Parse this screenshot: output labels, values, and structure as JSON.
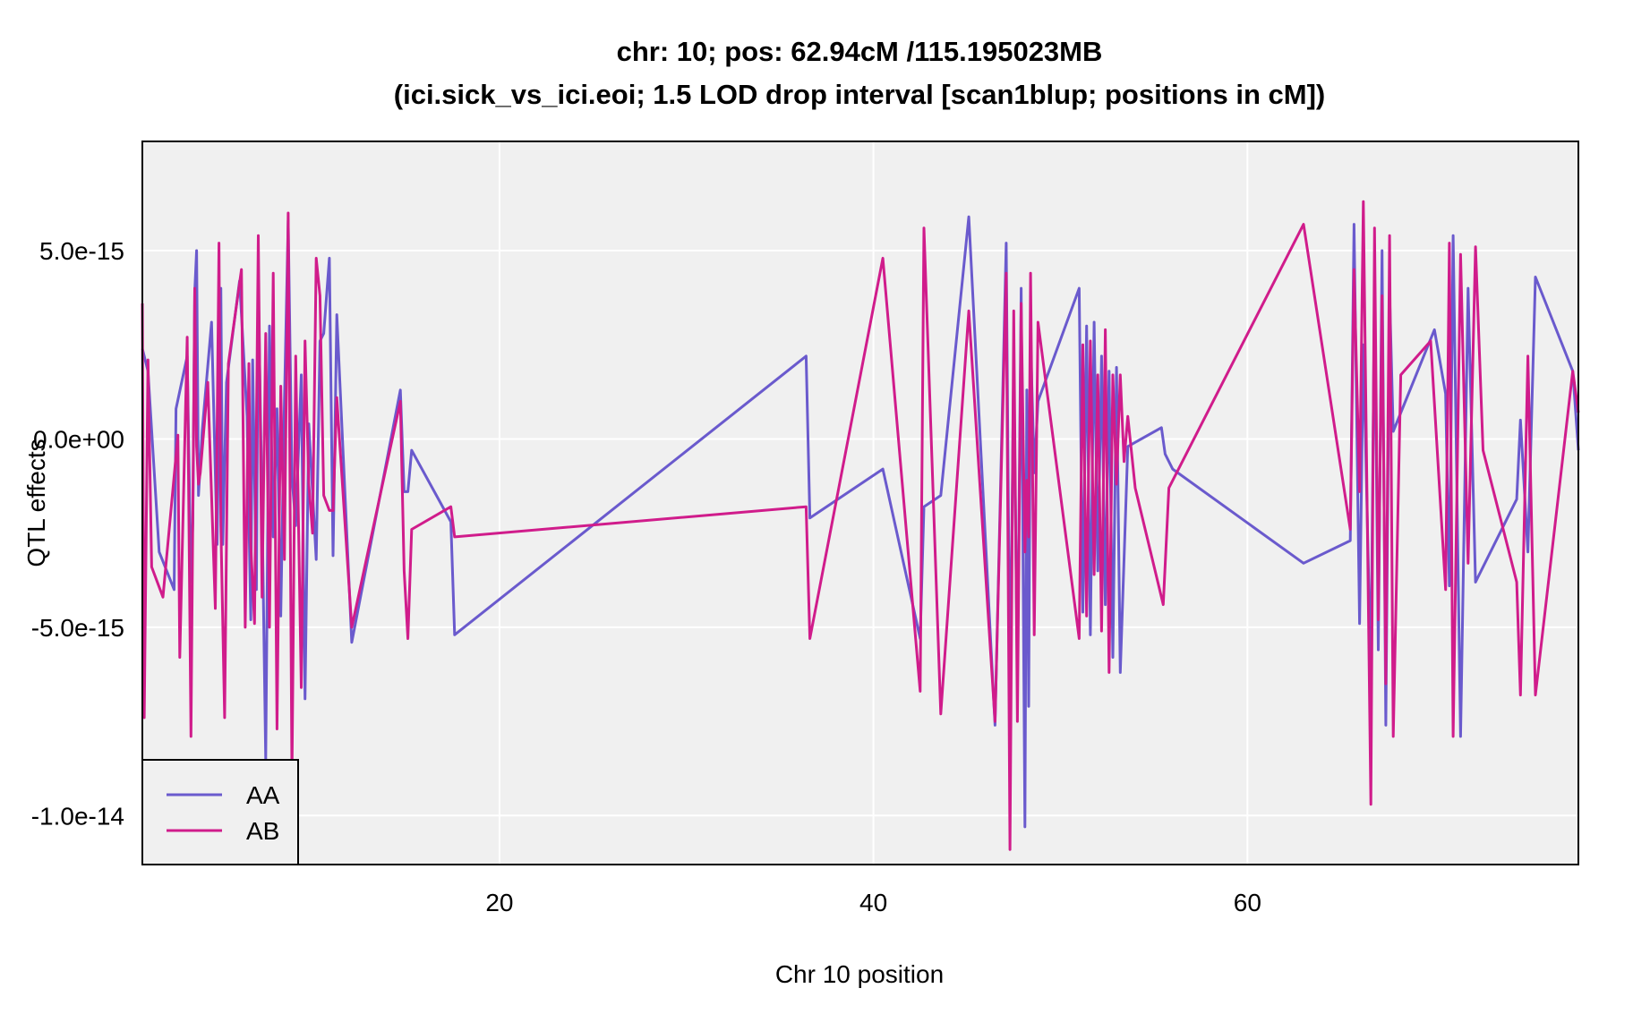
{
  "chart_data": {
    "type": "line",
    "title": "chr: 10; pos: 62.94cM /115.195023MB",
    "subtitle": "(ici.sick_vs_ici.eoi; 1.5 LOD drop interval [scan1blup; positions in cM])",
    "xlabel": "Chr 10 position",
    "ylabel": "QTL effects",
    "xlim": [
      0.9,
      77.7
    ],
    "ylim": [
      -1.13e-14,
      7.9e-15
    ],
    "x_ticks": [
      20,
      40,
      60
    ],
    "x_tick_labels": [
      "20",
      "40",
      "60"
    ],
    "y_ticks": [
      5e-15,
      0,
      -5e-15,
      -1e-14
    ],
    "y_tick_labels": [
      "5.0e-15",
      "0.0e+00",
      "-5.0e-15",
      "-1.0e-14"
    ],
    "grid": true,
    "legend_position": "bottom-left",
    "series": [
      {
        "name": "AA",
        "color": "#6a5acd",
        "x": [
          0.9,
          1.2,
          1.8,
          2.6,
          2.7,
          3.3,
          3.5,
          3.6,
          3.7,
          3.8,
          3.9,
          4.1,
          4.6,
          4.9,
          5.1,
          5.2,
          5.4,
          6.1,
          6.5,
          6.7,
          6.8,
          7.0,
          7.1,
          7.3,
          7.5,
          7.7,
          7.9,
          8.1,
          8.3,
          8.5,
          8.7,
          8.9,
          9.1,
          9.4,
          9.6,
          9.8,
          10.2,
          10.4,
          10.6,
          10.9,
          11.1,
          11.3,
          12.1,
          14.7,
          14.9,
          15.1,
          15.3,
          17.4,
          17.6,
          36.4,
          36.6,
          40.5,
          42.5,
          42.7,
          43.6,
          45.1,
          46.5,
          47.1,
          47.3,
          47.5,
          47.7,
          47.9,
          48.1,
          48.2,
          48.3,
          48.4,
          48.6,
          48.8,
          51.0,
          51.2,
          51.4,
          51.6,
          51.8,
          52.0,
          52.2,
          52.4,
          52.6,
          52.8,
          53.0,
          53.2,
          53.6,
          55.4,
          55.6,
          56.0,
          63.0,
          65.5,
          65.7,
          66.0,
          66.2,
          66.6,
          66.8,
          67.0,
          67.2,
          67.4,
          67.6,
          67.8,
          70.0,
          70.6,
          70.8,
          71.0,
          71.4,
          71.8,
          72.2,
          74.4,
          74.6,
          75.0,
          75.4,
          77.4,
          77.7
        ],
        "y": [
          2.4e-15,
          1.8e-15,
          -3e-15,
          -4e-15,
          8e-16,
          2.2e-15,
          -3.8e-15,
          -2.2e-15,
          3.9e-15,
          5e-15,
          -1.5e-15,
          2e-16,
          3.1e-15,
          -2.8e-15,
          4e-15,
          -2.8e-15,
          1.5e-15,
          4.2e-15,
          6e-16,
          -4.8e-15,
          2.1e-15,
          -4e-15,
          4.1e-15,
          -1.8e-15,
          -8.5e-15,
          3e-15,
          -2.6e-15,
          8e-16,
          -4.7e-15,
          1e-15,
          5.8e-15,
          -1e-15,
          -2.3e-15,
          1.7e-15,
          -6.9e-15,
          4e-16,
          -3.2e-15,
          2.6e-15,
          2.8e-15,
          4.8e-15,
          -3.1e-15,
          3.3e-15,
          -5.4e-15,
          1.3e-15,
          -1.4e-15,
          -1.4e-15,
          -3e-16,
          -2.2e-15,
          -5.2e-15,
          2.2e-15,
          -2.1e-15,
          -8e-16,
          -5.3e-15,
          -1.8e-15,
          -1.5e-15,
          5.9e-15,
          -7.6e-15,
          5.2e-15,
          -6.9e-15,
          2e-15,
          -6.4e-15,
          4e-15,
          -1.03e-14,
          1.3e-15,
          -7.1e-15,
          2.7e-15,
          -9e-16,
          1e-15,
          4e-15,
          -4.6e-15,
          3e-15,
          -5.2e-15,
          3.1e-15,
          -3.5e-15,
          2.2e-15,
          -4.4e-15,
          1.8e-15,
          -5.8e-15,
          1.9e-15,
          -6.2e-15,
          -2e-16,
          3e-16,
          -4e-16,
          -8e-16,
          -3.3e-15,
          -2.7e-15,
          5.7e-15,
          -4.9e-15,
          2.5e-15,
          -6.3e-15,
          4.1e-15,
          -5.6e-15,
          5e-15,
          -7.6e-15,
          3.9e-15,
          2e-16,
          2.9e-15,
          1.2e-15,
          -3.9e-15,
          5.4e-15,
          -7.9e-15,
          4e-15,
          -3.8e-15,
          -1.6e-15,
          5e-16,
          -3e-15,
          4.3e-15,
          1.8e-15,
          -3e-16
        ]
      },
      {
        "name": "AB",
        "color": "#d01c8b",
        "x": [
          0.9,
          1.0,
          1.2,
          1.4,
          2.0,
          2.8,
          2.9,
          3.3,
          3.5,
          3.7,
          3.8,
          3.9,
          4.0,
          4.4,
          4.8,
          5.0,
          5.1,
          5.3,
          5.5,
          6.2,
          6.4,
          6.6,
          6.7,
          6.9,
          7.1,
          7.3,
          7.5,
          7.7,
          7.9,
          8.1,
          8.3,
          8.5,
          8.7,
          8.9,
          9.1,
          9.4,
          9.6,
          9.8,
          10.0,
          10.2,
          10.4,
          10.6,
          10.9,
          11.1,
          11.3,
          12.1,
          14.7,
          14.9,
          15.1,
          15.3,
          17.4,
          17.6,
          36.4,
          36.6,
          40.5,
          42.5,
          42.7,
          43.6,
          45.1,
          46.5,
          47.1,
          47.3,
          47.5,
          47.7,
          47.9,
          48.1,
          48.2,
          48.3,
          48.4,
          48.6,
          48.8,
          51.0,
          51.2,
          51.4,
          51.6,
          51.8,
          52.0,
          52.2,
          52.4,
          52.6,
          52.8,
          53.0,
          53.2,
          53.4,
          53.6,
          54.0,
          55.5,
          55.8,
          63.0,
          65.5,
          65.7,
          66.0,
          66.2,
          66.6,
          66.8,
          67.0,
          67.2,
          67.4,
          67.6,
          67.8,
          68.2,
          69.8,
          70.6,
          70.8,
          71.0,
          71.4,
          71.8,
          72.2,
          72.6,
          74.4,
          74.6,
          75.0,
          75.4,
          77.4,
          77.7
        ],
        "y": [
          3.6e-15,
          -7.4e-15,
          2.1e-15,
          -3.4e-15,
          -4.2e-15,
          1e-16,
          -5.8e-15,
          2.7e-15,
          -7.9e-15,
          4e-15,
          -2e-16,
          -1.2e-15,
          -9e-16,
          1.5e-15,
          -4.5e-15,
          5.2e-15,
          -2.3e-15,
          -7.4e-15,
          2e-15,
          4.5e-15,
          -5e-15,
          2e-15,
          -2.8e-15,
          -4.9e-15,
          5.4e-15,
          -4.2e-15,
          2.8e-15,
          -5e-15,
          4.4e-15,
          -7.7e-15,
          1.4e-15,
          -3.2e-15,
          6e-15,
          -9e-15,
          2.2e-15,
          -6.6e-15,
          2.6e-15,
          -1.2e-15,
          -2.5e-15,
          4.8e-15,
          3.8e-15,
          -1.5e-15,
          -1.9e-15,
          -1.9e-15,
          1.1e-15,
          -5e-15,
          1e-15,
          -3.5e-15,
          -5.3e-15,
          -2.4e-15,
          -1.8e-15,
          -2.6e-15,
          -1.8e-15,
          -5.3e-15,
          4.8e-15,
          -6.7e-15,
          5.6e-15,
          -7.3e-15,
          3.4e-15,
          -7.5e-15,
          4.4e-15,
          -1.09e-14,
          3.4e-15,
          -7.5e-15,
          3.6e-15,
          -3e-15,
          -1.1e-15,
          -2.6e-15,
          4.4e-15,
          -5.2e-15,
          3.1e-15,
          -5.3e-15,
          2.5e-15,
          -4.7e-15,
          2.6e-15,
          -3.6e-15,
          1.7e-15,
          -5.1e-15,
          2.9e-15,
          -6.2e-15,
          1.7e-15,
          -1.2e-15,
          1.7e-15,
          -6e-16,
          6e-16,
          -1.3e-15,
          -4.4e-15,
          -1.3e-15,
          5.7e-15,
          -2.4e-15,
          4.5e-15,
          -1.4e-15,
          6.3e-15,
          -9.7e-15,
          5.6e-15,
          -4.8e-15,
          3.8e-15,
          -6.5e-15,
          5.4e-15,
          -7.9e-15,
          1.7e-15,
          2.6e-15,
          -4e-15,
          5.2e-15,
          -7.9e-15,
          4.9e-15,
          -3.3e-15,
          5.1e-15,
          -3e-16,
          -3.8e-15,
          -6.8e-15,
          2.2e-15,
          -6.8e-15,
          1.8e-15,
          7e-16
        ]
      }
    ]
  }
}
